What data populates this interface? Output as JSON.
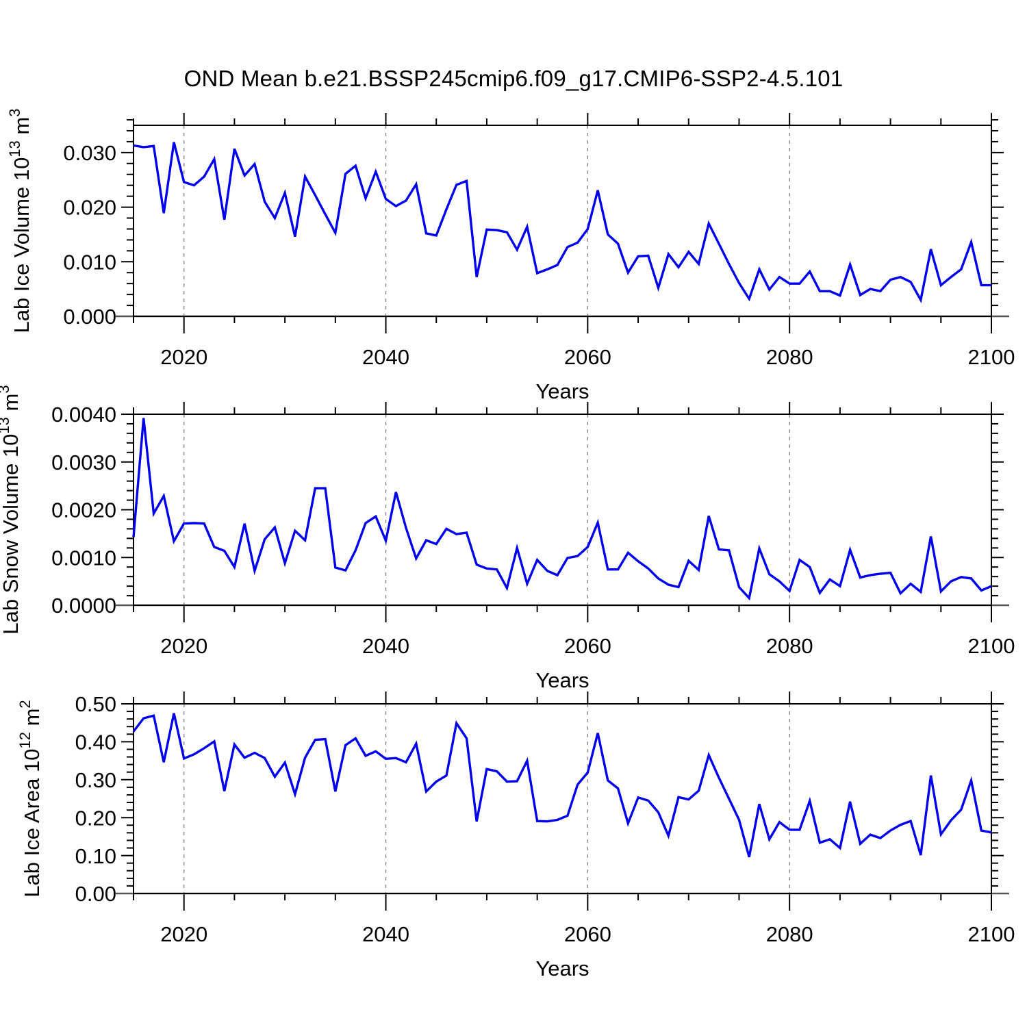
{
  "title": "OND Mean b.e21.BSSP245cmip6.f09_g17.CMIP6-SSP2-4.5.101",
  "colors": {
    "line": "#0000f0",
    "grid": "#8f8f8f",
    "axis": "#000000",
    "bottom_axis": "#555555",
    "text": "#000000",
    "background": "#ffffff"
  },
  "x_axis": {
    "label": "Years",
    "range": [
      2015,
      2100
    ],
    "major_ticks": [
      2020,
      2040,
      2060,
      2080,
      2100
    ],
    "major_tick_labels": [
      "2020",
      "2040",
      "2060",
      "2080",
      "2100"
    ],
    "minor_step": 5,
    "gridlines": [
      2020,
      2040,
      2060,
      2080
    ]
  },
  "chart_data": [
    {
      "type": "line",
      "name": "lab-ice-volume",
      "ylabel_text": "Lab Ice Volume 10^13 m^3",
      "ylabel_parts": [
        [
          "Lab Ice Volume 10",
          0
        ],
        [
          "13",
          1
        ],
        [
          " m",
          0
        ],
        [
          "3",
          1
        ]
      ],
      "xlabel": "Years",
      "ylim": [
        0,
        0.035
      ],
      "yticks": [
        0,
        0.01,
        0.02,
        0.03
      ],
      "ytick_labels": [
        "0.000",
        "0.010",
        "0.020",
        "0.030"
      ],
      "y_minor_step": 0.002,
      "x_start": 2015,
      "x_step": 1,
      "values": [
        0.0313,
        0.031,
        0.0312,
        0.0189,
        0.0319,
        0.0246,
        0.024,
        0.0256,
        0.0288,
        0.0177,
        0.0307,
        0.0258,
        0.0279,
        0.021,
        0.018,
        0.0226,
        0.0146,
        0.0256,
        0.0222,
        0.0187,
        0.0153,
        0.0261,
        0.0276,
        0.0216,
        0.0265,
        0.0215,
        0.0202,
        0.0212,
        0.0242,
        0.0152,
        0.0148,
        0.0196,
        0.0241,
        0.0248,
        0.0072,
        0.0159,
        0.0158,
        0.0154,
        0.0122,
        0.0164,
        0.0079,
        0.0086,
        0.0094,
        0.0127,
        0.0135,
        0.016,
        0.0231,
        0.015,
        0.0133,
        0.008,
        0.011,
        0.0111,
        0.0052,
        0.0114,
        0.009,
        0.0118,
        0.0096,
        0.017,
        0.0133,
        0.0096,
        0.0061,
        0.0032,
        0.0086,
        0.0049,
        0.0072,
        0.006,
        0.006,
        0.0082,
        0.0046,
        0.0046,
        0.0038,
        0.0095,
        0.0039,
        0.005,
        0.0046,
        0.0067,
        0.0072,
        0.0063,
        0.003,
        0.0123,
        0.0057,
        0.0072,
        0.0086,
        0.0136,
        0.0057,
        0.0057
      ]
    },
    {
      "type": "line",
      "name": "lab-snow-volume",
      "ylabel_text": "Lab Snow Volume 10^13 m^3",
      "ylabel_parts": [
        [
          "Lab Snow Volume 10",
          0
        ],
        [
          "13",
          1
        ],
        [
          " m",
          0
        ],
        [
          "3",
          1
        ]
      ],
      "xlabel": "Years",
      "ylim": [
        0,
        0.004
      ],
      "yticks": [
        0,
        0.001,
        0.002,
        0.003,
        0.004
      ],
      "ytick_labels": [
        "0.0000",
        "0.0010",
        "0.0020",
        "0.0030",
        "0.0040"
      ],
      "y_minor_step": 0.0002,
      "x_start": 2015,
      "x_step": 1,
      "values": [
        0.00143,
        0.00392,
        0.00192,
        0.00229,
        0.00134,
        0.00171,
        0.00172,
        0.00171,
        0.00122,
        0.00114,
        0.0008,
        0.00171,
        0.00072,
        0.00138,
        0.00163,
        0.00088,
        0.00156,
        0.00136,
        0.00245,
        0.00245,
        0.00079,
        0.00073,
        0.00115,
        0.00172,
        0.00186,
        0.00135,
        0.00237,
        0.00162,
        0.00098,
        0.00136,
        0.00128,
        0.0016,
        0.00149,
        0.00152,
        0.00085,
        0.00077,
        0.00075,
        0.00036,
        0.0012,
        0.00045,
        0.00095,
        0.00072,
        0.00063,
        0.00099,
        0.00103,
        0.00122,
        0.00173,
        0.00075,
        0.00075,
        0.0011,
        0.00092,
        0.00077,
        0.00056,
        0.00043,
        0.00038,
        0.00093,
        0.00074,
        0.00187,
        0.00117,
        0.00115,
        0.00038,
        0.00015,
        0.00119,
        0.00065,
        0.0005,
        0.0003,
        0.00095,
        0.0008,
        0.00026,
        0.00054,
        0.0004,
        0.00116,
        0.00058,
        0.00063,
        0.00066,
        0.00068,
        0.00025,
        0.00045,
        0.00028,
        0.00144,
        0.00029,
        0.0005,
        0.00059,
        0.00056,
        0.00031,
        0.0004
      ]
    },
    {
      "type": "line",
      "name": "lab-ice-area",
      "ylabel_text": "Lab Ice Area 10^12 m^2",
      "ylabel_parts": [
        [
          "Lab Ice Area 10",
          0
        ],
        [
          "12",
          1
        ],
        [
          " m",
          0
        ],
        [
          "2",
          1
        ]
      ],
      "xlabel": "Years",
      "ylim": [
        0,
        0.5
      ],
      "yticks": [
        0,
        0.1,
        0.2,
        0.3,
        0.4,
        0.5
      ],
      "ytick_labels": [
        "0.00",
        "0.10",
        "0.20",
        "0.30",
        "0.40",
        "0.50"
      ],
      "y_minor_step": 0.02,
      "x_start": 2015,
      "x_step": 1,
      "values": [
        0.427,
        0.462,
        0.469,
        0.346,
        0.475,
        0.356,
        0.367,
        0.383,
        0.401,
        0.27,
        0.393,
        0.358,
        0.371,
        0.357,
        0.308,
        0.345,
        0.262,
        0.358,
        0.405,
        0.407,
        0.269,
        0.391,
        0.409,
        0.363,
        0.375,
        0.355,
        0.357,
        0.346,
        0.395,
        0.269,
        0.295,
        0.311,
        0.449,
        0.409,
        0.19,
        0.328,
        0.322,
        0.295,
        0.296,
        0.35,
        0.191,
        0.19,
        0.194,
        0.205,
        0.287,
        0.319,
        0.423,
        0.298,
        0.277,
        0.185,
        0.253,
        0.245,
        0.214,
        0.152,
        0.254,
        0.248,
        0.271,
        0.365,
        0.305,
        0.25,
        0.194,
        0.096,
        0.236,
        0.143,
        0.188,
        0.168,
        0.168,
        0.244,
        0.134,
        0.143,
        0.12,
        0.242,
        0.131,
        0.155,
        0.146,
        0.166,
        0.181,
        0.191,
        0.101,
        0.311,
        0.156,
        0.193,
        0.221,
        0.298,
        0.166,
        0.161
      ]
    }
  ]
}
